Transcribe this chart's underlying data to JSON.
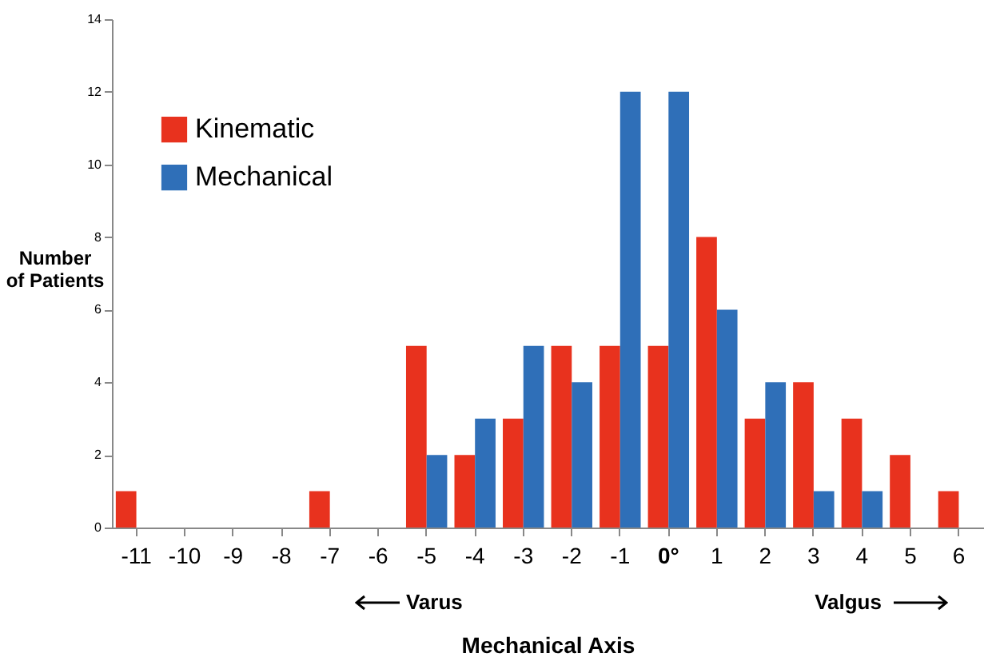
{
  "chart_data": {
    "type": "bar",
    "xlabel": "Mechanical Axis",
    "ylabel": "Number of Patients",
    "categories": [
      "-11",
      "-10",
      "-9",
      "-8",
      "-7",
      "-6",
      "-5",
      "-4",
      "-3",
      "-2",
      "-1",
      "0°",
      "1",
      "2",
      "3",
      "4",
      "5",
      "6"
    ],
    "series": [
      {
        "name": "Kinematic",
        "color": "#e8321e",
        "values": [
          1,
          0,
          0,
          0,
          1,
          0,
          5,
          2,
          3,
          5,
          5,
          5,
          8,
          3,
          4,
          3,
          2,
          1
        ]
      },
      {
        "name": "Mechanical",
        "color": "#2f6fb8",
        "values": [
          0,
          0,
          0,
          0,
          0,
          0,
          2,
          3,
          5,
          4,
          12,
          12,
          6,
          4,
          1,
          1,
          0,
          0
        ]
      }
    ],
    "ylim": [
      0,
      14
    ],
    "yticks": [
      0,
      2,
      4,
      6,
      8,
      10,
      12,
      14
    ],
    "grid": false,
    "legend": "top left",
    "annotations": [
      "Varus",
      "Valgus"
    ]
  }
}
